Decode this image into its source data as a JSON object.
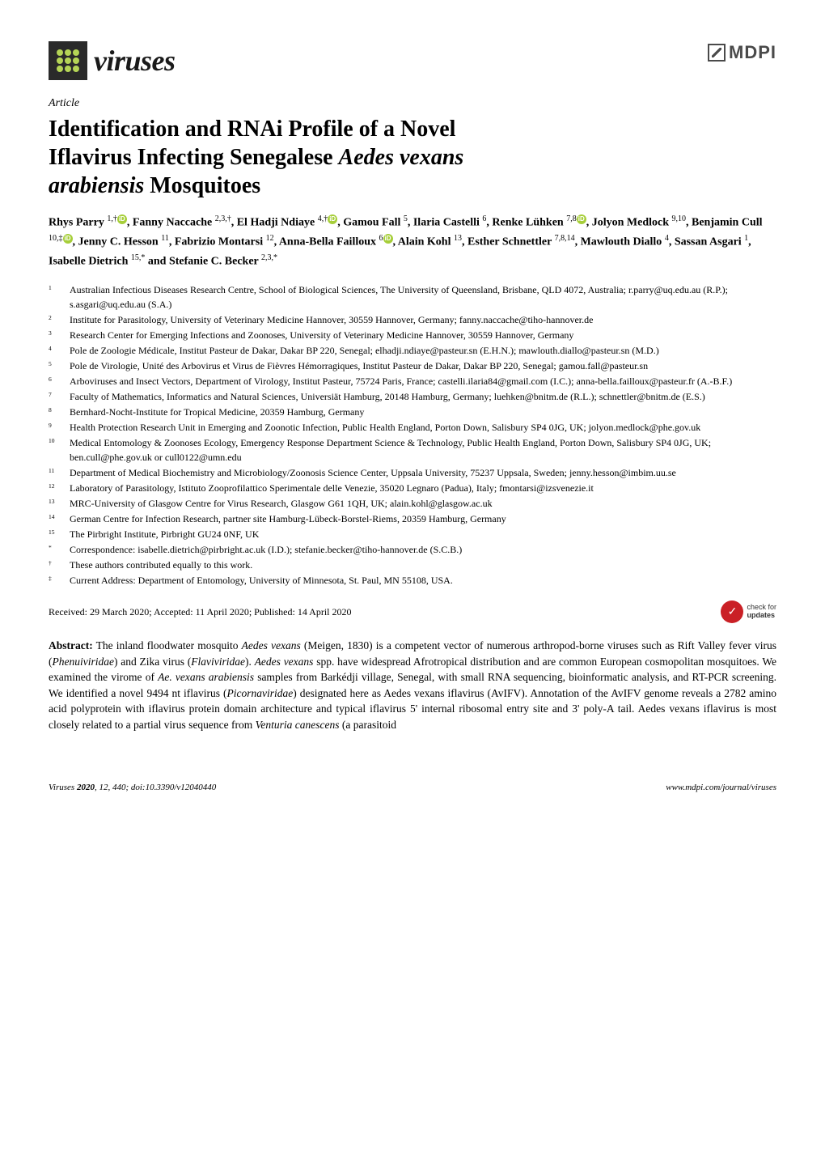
{
  "journal": {
    "name": "viruses",
    "publisher": "MDPI"
  },
  "article": {
    "type": "Article",
    "title_line1": "Identification and RNAi Profile of a Novel",
    "title_line2": "Iflavirus Infecting Senegalese Aedes vexans",
    "title_line3": "arabiensis Mosquitoes"
  },
  "authors_html": "Rhys Parry <sup>1,†</sup><span class='orcid'>iD</span>, Fanny Naccache <sup>2,3,†</sup>, El Hadji Ndiaye <sup>4,†</sup><span class='orcid'>iD</span>, Gamou Fall <sup>5</sup>, Ilaria Castelli <sup>6</sup>, Renke Lühken <sup>7,8</sup><span class='orcid'>iD</span>, Jolyon Medlock <sup>9,10</sup>, Benjamin Cull <sup>10,‡</sup><span class='orcid'>iD</span>, Jenny C. Hesson <sup>11</sup>, Fabrizio Montarsi <sup>12</sup>, Anna-Bella Failloux <sup>6</sup><span class='orcid'>iD</span>, Alain Kohl <sup>13</sup>, Esther Schnettler <sup>7,8,14</sup>, Mawlouth Diallo <sup>4</sup>, Sassan Asgari <sup>1</sup>, Isabelle Dietrich <sup>15,*</sup> and Stefanie C. Becker <sup>2,3,*</sup>",
  "affiliations": [
    {
      "n": "1",
      "text": "Australian Infectious Diseases Research Centre, School of Biological Sciences, The University of Queensland, Brisbane, QLD 4072, Australia; r.parry@uq.edu.au (R.P.); s.asgari@uq.edu.au (S.A.)"
    },
    {
      "n": "2",
      "text": "Institute for Parasitology, University of Veterinary Medicine Hannover, 30559 Hannover, Germany; fanny.naccache@tiho-hannover.de"
    },
    {
      "n": "3",
      "text": "Research Center for Emerging Infections and Zoonoses, University of Veterinary Medicine Hannover, 30559 Hannover, Germany"
    },
    {
      "n": "4",
      "text": "Pole de Zoologie Médicale, Institut Pasteur de Dakar, Dakar BP 220, Senegal; elhadji.ndiaye@pasteur.sn (E.H.N.); mawlouth.diallo@pasteur.sn (M.D.)"
    },
    {
      "n": "5",
      "text": "Pole de Virologie, Unité des Arbovirus et Virus de Fièvres Hémorragiques, Institut Pasteur de Dakar, Dakar BP 220, Senegal; gamou.fall@pasteur.sn"
    },
    {
      "n": "6",
      "text": "Arboviruses and Insect Vectors, Department of Virology, Institut Pasteur, 75724 Paris, France; castelli.ilaria84@gmail.com (I.C.); anna-bella.failloux@pasteur.fr (A.-B.F.)"
    },
    {
      "n": "7",
      "text": "Faculty of Mathematics, Informatics and Natural Sciences, Universiät Hamburg, 20148 Hamburg, Germany; luehken@bnitm.de (R.L.); schnettler@bnitm.de (E.S.)"
    },
    {
      "n": "8",
      "text": "Bernhard-Nocht-Institute for Tropical Medicine, 20359 Hamburg, Germany"
    },
    {
      "n": "9",
      "text": "Health Protection Research Unit in Emerging and Zoonotic Infection, Public Health England, Porton Down, Salisbury SP4 0JG, UK; jolyon.medlock@phe.gov.uk"
    },
    {
      "n": "10",
      "text": "Medical Entomology & Zoonoses Ecology, Emergency Response Department Science & Technology, Public Health England, Porton Down, Salisbury SP4 0JG, UK; ben.cull@phe.gov.uk or cull0122@umn.edu"
    },
    {
      "n": "11",
      "text": "Department of Medical Biochemistry and Microbiology/Zoonosis Science Center, Uppsala University, 75237 Uppsala, Sweden; jenny.hesson@imbim.uu.se"
    },
    {
      "n": "12",
      "text": "Laboratory of Parasitology, Istituto Zooprofilattico Sperimentale delle Venezie, 35020 Legnaro (Padua), Italy; fmontarsi@izsvenezie.it"
    },
    {
      "n": "13",
      "text": "MRC-University of Glasgow Centre for Virus Research, Glasgow G61 1QH, UK; alain.kohl@glasgow.ac.uk"
    },
    {
      "n": "14",
      "text": "German Centre for Infection Research, partner site Hamburg-Lübeck-Borstel-Riems, 20359 Hamburg, Germany"
    },
    {
      "n": "15",
      "text": "The Pirbright Institute, Pirbright GU24 0NF, UK"
    },
    {
      "n": "*",
      "text": "Correspondence: isabelle.dietrich@pirbright.ac.uk (I.D.); stefanie.becker@tiho-hannover.de (S.C.B.)"
    },
    {
      "n": "†",
      "text": "These authors contributed equally to this work."
    },
    {
      "n": "‡",
      "text": "Current Address: Department of Entomology, University of Minnesota, St. Paul, MN 55108, USA."
    }
  ],
  "dates": "Received: 29 March 2020; Accepted: 11 April 2020; Published: 14 April 2020",
  "updates": {
    "line1": "check for",
    "line2": "updates"
  },
  "abstract": {
    "label": "Abstract:",
    "text": " The inland floodwater mosquito Aedes vexans (Meigen, 1830) is a competent vector of numerous arthropod-borne viruses such as Rift Valley fever virus (Phenuiviridae) and Zika virus (Flaviviridae). Aedes vexans spp. have widespread Afrotropical distribution and are common European cosmopolitan mosquitoes. We examined the virome of Ae. vexans arabiensis samples from Barkédji village, Senegal, with small RNA sequencing, bioinformatic analysis, and RT-PCR screening. We identified a novel 9494 nt iflavirus (Picornaviridae) designated here as Aedes vexans iflavirus (AvIFV). Annotation of the AvIFV genome reveals a 2782 amino acid polyprotein with iflavirus protein domain architecture and typical iflavirus 5' internal ribosomal entry site and 3' poly-A tail. Aedes vexans iflavirus is most closely related to a partial virus sequence from Venturia canescens (a parasitoid"
  },
  "footer": {
    "left": "Viruses 2020, 12, 440; doi:10.3390/v12040440",
    "right": "www.mdpi.com/journal/viruses"
  },
  "colors": {
    "logo_bg": "#2a2a2a",
    "logo_dots": "#b5d556",
    "orcid": "#a6ce39",
    "updates_red": "#ca2026",
    "text": "#000000",
    "bg": "#ffffff"
  }
}
